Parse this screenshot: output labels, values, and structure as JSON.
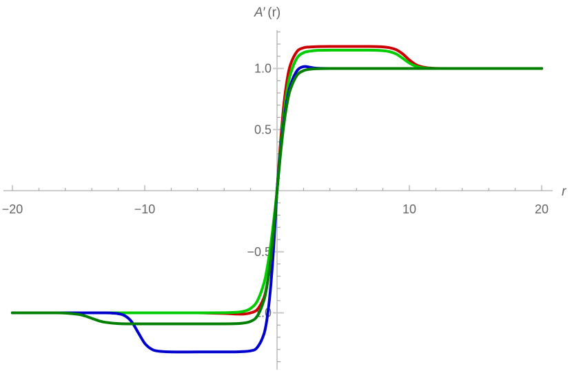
{
  "chart_data": {
    "type": "line",
    "title": "",
    "xlabel": "r",
    "ylabel": "A′(r)",
    "xlim": [
      -20,
      20
    ],
    "ylim": [
      -1.45,
      1.35
    ],
    "grid": false,
    "legend": null,
    "x_ticks": [
      {
        "value": -20,
        "label": "−20"
      },
      {
        "value": -10,
        "label": "−10"
      },
      {
        "value": 10,
        "label": "10"
      },
      {
        "value": 20,
        "label": "20"
      }
    ],
    "y_ticks": [
      {
        "value": 1.0,
        "label": "1.0"
      },
      {
        "value": 0.5,
        "label": "0.5"
      },
      {
        "value": -0.5,
        "label": "−0.5"
      },
      {
        "value": -1.0,
        "label": "−1.0"
      }
    ],
    "x_minor_step": 2,
    "y_minor_step": 0.1,
    "series": [
      {
        "name": "red",
        "color": "#CC0000",
        "x": [
          -20,
          -16,
          -12,
          -8,
          -6,
          -4,
          -3,
          -2.5,
          -2,
          -1.5,
          -1,
          -0.75,
          -0.5,
          -0.25,
          0,
          0.25,
          0.5,
          0.75,
          1,
          1.5,
          2,
          2.5,
          3,
          4,
          5,
          6,
          7,
          8,
          8.5,
          9,
          9.5,
          10,
          10.5,
          11,
          11.5,
          12,
          13,
          16,
          20
        ],
        "values": [
          -1.0,
          -1.0,
          -1.0,
          -1.0,
          -1.0,
          -1.005,
          -1.01,
          -1.01,
          -1.0,
          -0.974,
          -0.879,
          -0.769,
          -0.589,
          -0.325,
          0,
          0.379,
          0.688,
          0.899,
          1.027,
          1.138,
          1.169,
          1.176,
          1.179,
          1.18,
          1.18,
          1.18,
          1.18,
          1.177,
          1.17,
          1.154,
          1.119,
          1.07,
          1.031,
          1.012,
          1.004,
          1.001,
          1.0,
          1.0,
          1.0
        ]
      },
      {
        "name": "light-green",
        "color": "#00CC00",
        "x": [
          -20,
          -16,
          -12,
          -8,
          -6,
          -4,
          -3,
          -2.5,
          -2,
          -1.5,
          -1,
          -0.75,
          -0.5,
          -0.25,
          0,
          0.25,
          0.5,
          0.75,
          1,
          1.5,
          2,
          2.5,
          3,
          4,
          5,
          6,
          7,
          8,
          8.5,
          9,
          9.5,
          10,
          10.5,
          11,
          11.5,
          12,
          13,
          16,
          20
        ],
        "values": [
          -1.0,
          -1.0,
          -1.0,
          -1.0,
          -1.0,
          -0.999,
          -0.995,
          -0.987,
          -0.964,
          -0.905,
          -0.762,
          -0.635,
          -0.462,
          -0.245,
          0,
          0.329,
          0.608,
          0.813,
          0.95,
          1.084,
          1.129,
          1.142,
          1.148,
          1.15,
          1.15,
          1.15,
          1.15,
          1.146,
          1.138,
          1.119,
          1.083,
          1.044,
          1.018,
          1.006,
          1.002,
          1.0,
          1.0,
          1.0,
          1.0
        ]
      },
      {
        "name": "blue",
        "color": "#0000CC",
        "x": [
          -20,
          -16,
          -13,
          -12.5,
          -12,
          -11.5,
          -11,
          -10.5,
          -10,
          -9.5,
          -9,
          -8,
          -6,
          -4,
          -3,
          -2,
          -1.5,
          -1,
          -0.75,
          -0.5,
          -0.25,
          0,
          0.25,
          0.5,
          0.75,
          1,
          1.5,
          2,
          2.5,
          3,
          4,
          6,
          10,
          16,
          20
        ],
        "values": [
          -1.0,
          -1.0,
          -1.0,
          -1.002,
          -1.007,
          -1.024,
          -1.071,
          -1.16,
          -1.249,
          -1.296,
          -1.313,
          -1.32,
          -1.32,
          -1.32,
          -1.319,
          -1.311,
          -1.284,
          -1.177,
          -1.043,
          -0.809,
          -0.452,
          0,
          0.304,
          0.557,
          0.739,
          0.859,
          0.98,
          1.015,
          1.01,
          1.002,
          1.0,
          1.0,
          1.0,
          1.0,
          1.0
        ]
      },
      {
        "name": "dark-green",
        "color": "#007F00",
        "x": [
          -20,
          -17,
          -16,
          -15,
          -14.5,
          -14,
          -13.5,
          -13,
          -12,
          -11,
          -8,
          -6,
          -4,
          -3,
          -2.5,
          -2,
          -1.5,
          -1,
          -0.75,
          -0.5,
          -0.25,
          0,
          0.25,
          0.5,
          0.75,
          1,
          1.5,
          2,
          2.5,
          3,
          4,
          6,
          10,
          16,
          20
        ],
        "values": [
          -1.0,
          -1.0,
          -1.002,
          -1.013,
          -1.026,
          -1.045,
          -1.064,
          -1.077,
          -1.088,
          -1.09,
          -1.09,
          -1.09,
          -1.09,
          -1.088,
          -1.083,
          -1.07,
          -1.028,
          -0.9,
          -0.771,
          -0.577,
          -0.312,
          0,
          0.286,
          0.529,
          0.707,
          0.826,
          0.943,
          0.982,
          0.994,
          0.998,
          1.0,
          1.0,
          1.0,
          1.0,
          1.0
        ]
      }
    ]
  },
  "labels": {
    "x_axis": "r",
    "y_axis_main": "A",
    "y_axis_prime": "′",
    "y_axis_arg": "(r)"
  }
}
